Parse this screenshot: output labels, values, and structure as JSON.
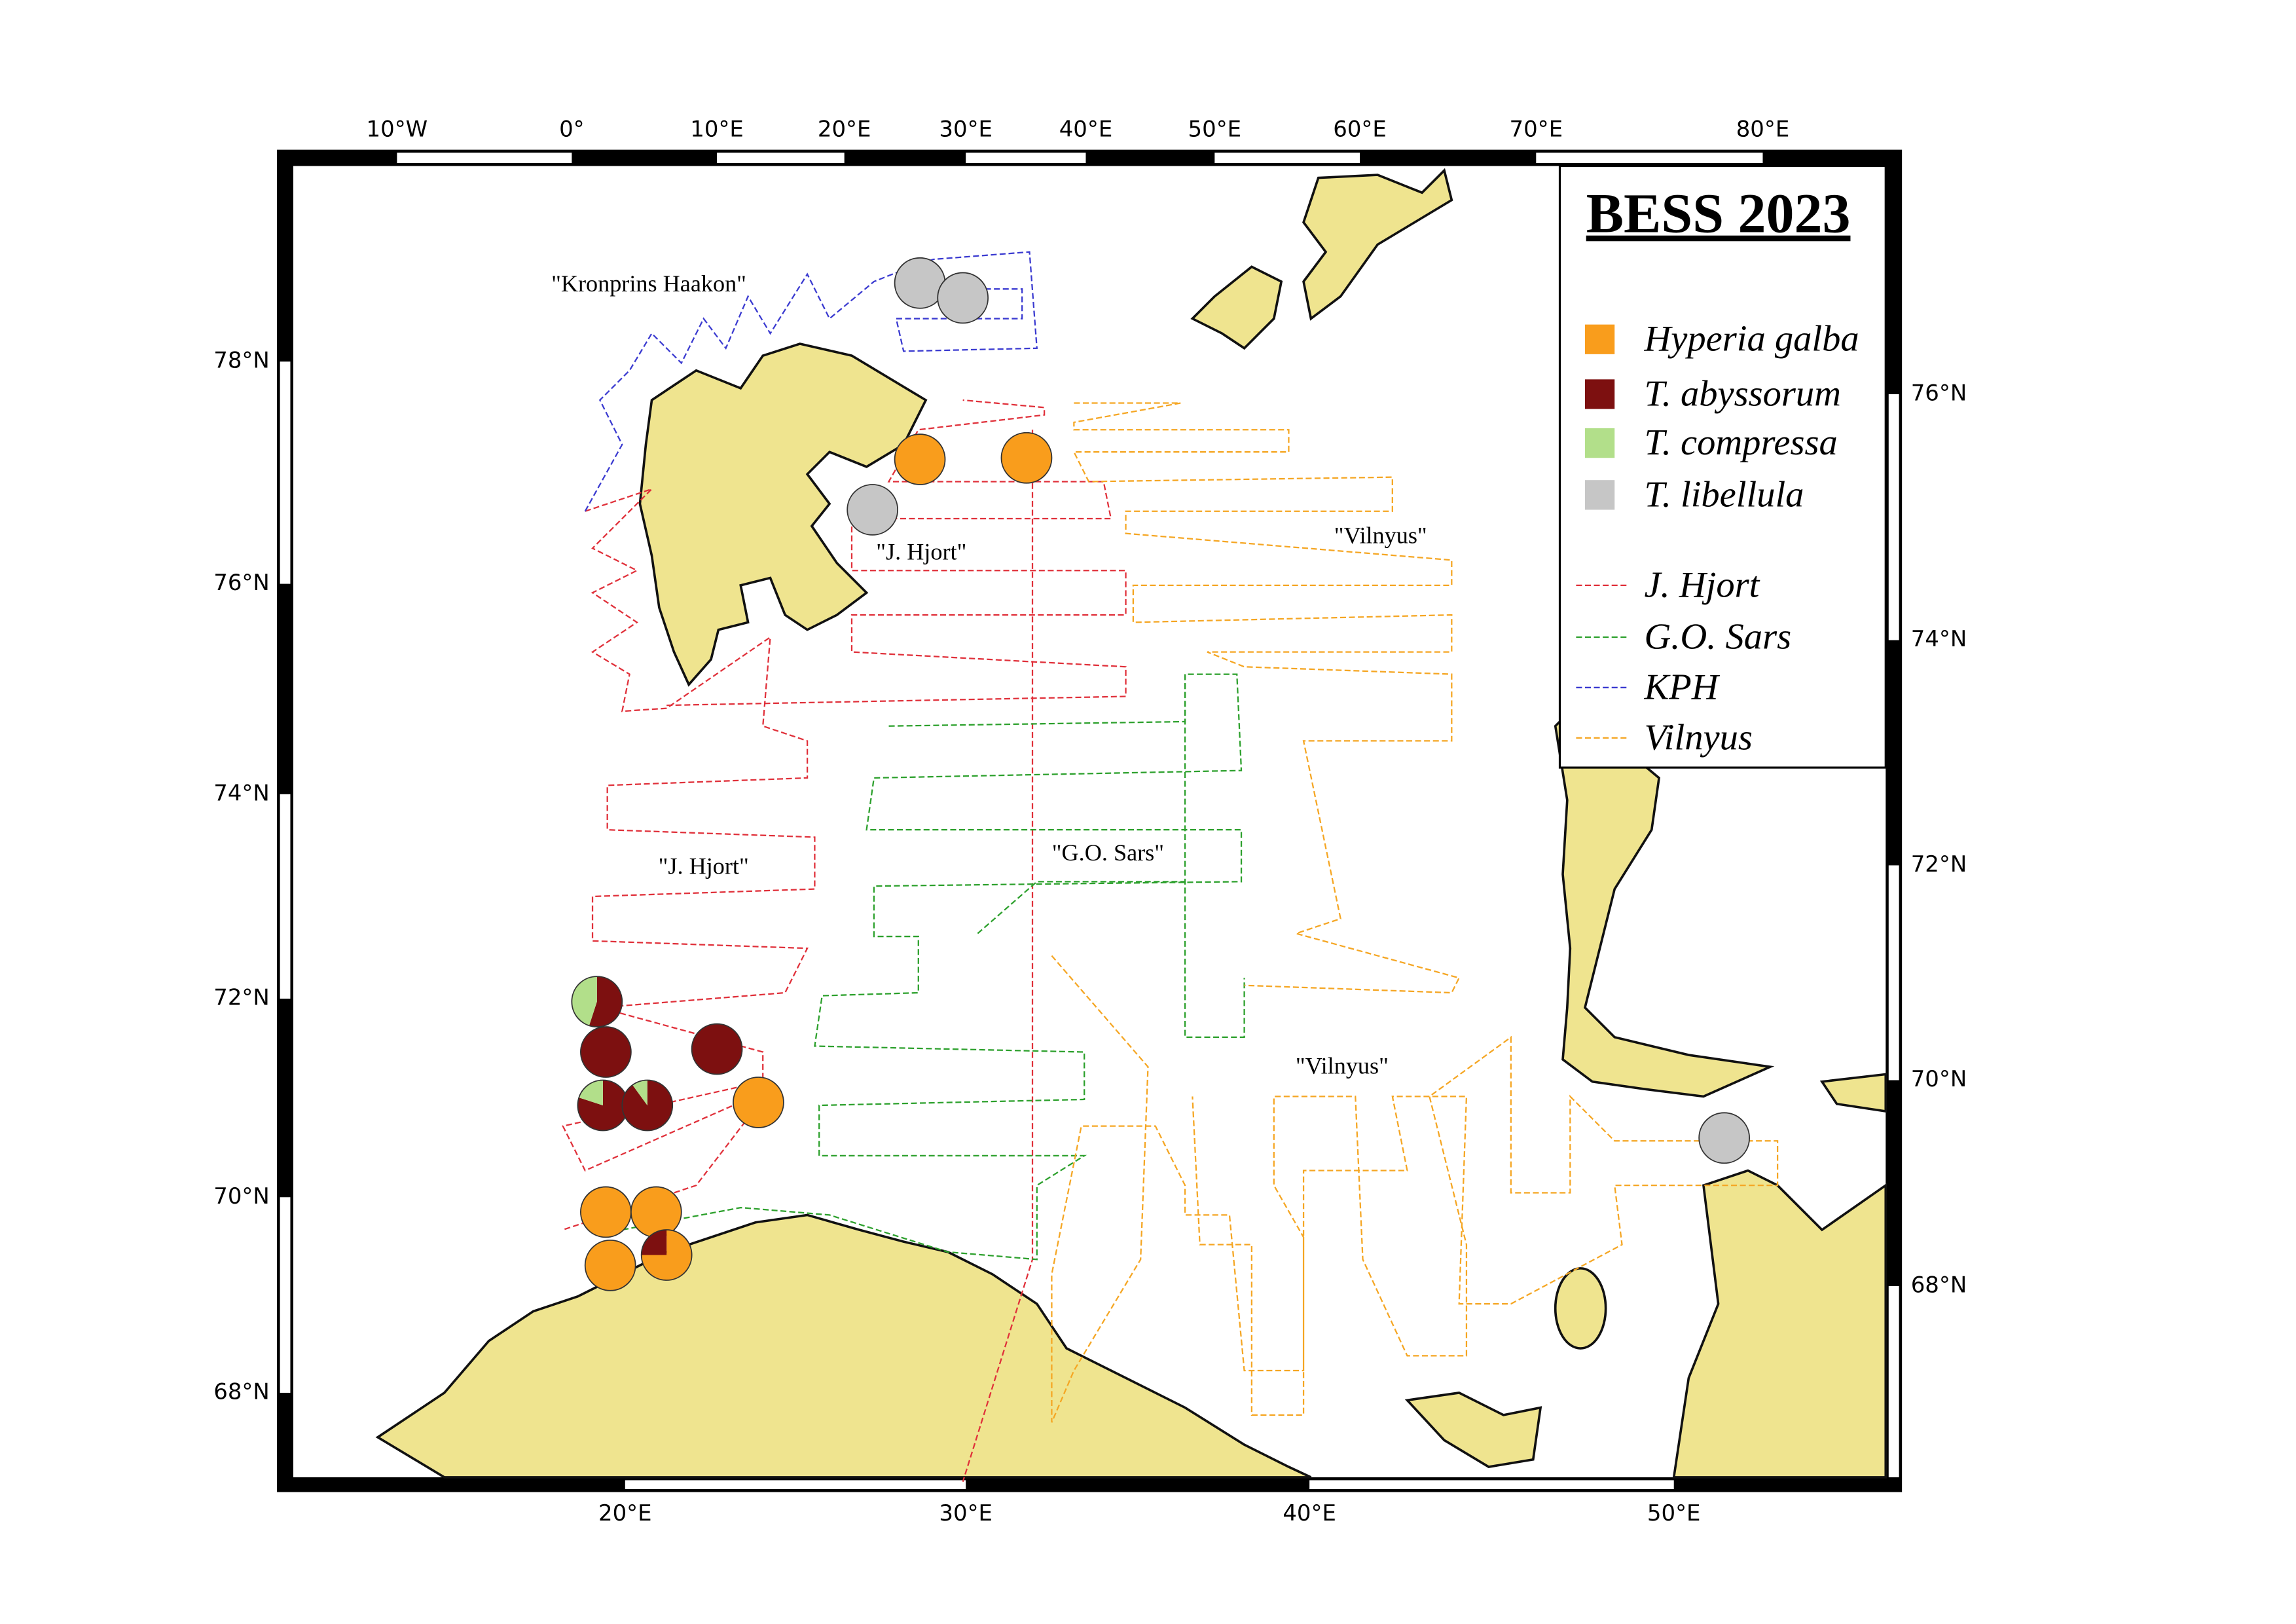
{
  "title": "BESS 2023",
  "species": [
    {
      "name": "Hyperia galba",
      "color": "#f99d1c"
    },
    {
      "name": "T. abyssorum",
      "color": "#7d1010"
    },
    {
      "name": "T. compressa",
      "color": "#b2df8a"
    },
    {
      "name": "T. libellula",
      "color": "#c6c6c6"
    }
  ],
  "cruises": [
    {
      "name": "J. Hjort",
      "color": "#e0303a"
    },
    {
      "name": "G.O. Sars",
      "color": "#2ca02c"
    },
    {
      "name": "KPH",
      "color": "#3a3ad0"
    },
    {
      "name": "Vilnyus",
      "color": "#f5a623"
    }
  ],
  "map_labels": [
    "\"Kronprins Haakon\"",
    "\"J. Hjort\"",
    "\"Vilnyus\"",
    "\"J. Hjort\"",
    "\"G.O. Sars\"",
    "\"Vilnyus\""
  ],
  "top_ticks": [
    "10°W",
    "0°",
    "10°E",
    "20°E",
    "30°E",
    "40°E",
    "50°E",
    "60°E",
    "70°E",
    "80°E"
  ],
  "bottom_ticks": [
    "20°E",
    "30°E",
    "40°E",
    "50°E"
  ],
  "left_ticks": [
    "78°N",
    "76°N",
    "74°N",
    "72°N",
    "70°N",
    "68°N"
  ],
  "right_ticks": [
    "76°N",
    "74°N",
    "72°N",
    "70°N",
    "68°N"
  ],
  "stations": [
    {
      "values": [
        0,
        0,
        0,
        100
      ]
    },
    {
      "values": [
        0,
        0,
        0,
        100
      ]
    },
    {
      "values": [
        100,
        0,
        0,
        0
      ]
    },
    {
      "values": [
        100,
        0,
        0,
        0
      ]
    },
    {
      "values": [
        0,
        0,
        0,
        100
      ]
    },
    {
      "values": [
        0,
        55,
        45,
        0
      ]
    },
    {
      "values": [
        0,
        100,
        0,
        0
      ]
    },
    {
      "values": [
        0,
        100,
        0,
        0
      ]
    },
    {
      "values": [
        0,
        80,
        20,
        0
      ]
    },
    {
      "values": [
        0,
        90,
        10,
        0
      ]
    },
    {
      "values": [
        100,
        0,
        0,
        0
      ]
    },
    {
      "values": [
        100,
        0,
        0,
        0
      ]
    },
    {
      "values": [
        100,
        0,
        0,
        0
      ]
    },
    {
      "values": [
        100,
        0,
        0,
        0
      ]
    },
    {
      "values": [
        75,
        25,
        0,
        0
      ]
    },
    {
      "values": [
        0,
        0,
        0,
        100
      ]
    }
  ]
}
